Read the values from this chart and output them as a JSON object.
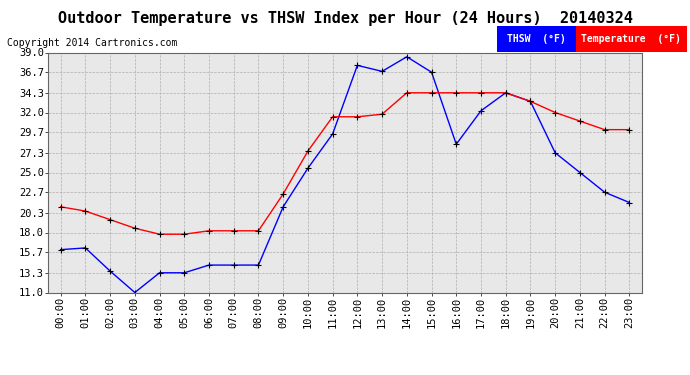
{
  "title": "Outdoor Temperature vs THSW Index per Hour (24 Hours)  20140324",
  "copyright": "Copyright 2014 Cartronics.com",
  "hours": [
    "00:00",
    "01:00",
    "02:00",
    "03:00",
    "04:00",
    "05:00",
    "06:00",
    "07:00",
    "08:00",
    "09:00",
    "10:00",
    "11:00",
    "12:00",
    "13:00",
    "14:00",
    "15:00",
    "16:00",
    "17:00",
    "18:00",
    "19:00",
    "20:00",
    "21:00",
    "22:00",
    "23:00"
  ],
  "thsw": [
    16.0,
    16.2,
    13.5,
    11.0,
    13.3,
    13.3,
    14.2,
    14.2,
    14.2,
    21.0,
    25.5,
    29.5,
    37.5,
    36.8,
    38.5,
    36.7,
    28.3,
    32.2,
    34.3,
    33.3,
    27.3,
    25.0,
    22.7,
    21.5
  ],
  "temperature": [
    21.0,
    20.5,
    19.5,
    18.5,
    17.8,
    17.8,
    18.2,
    18.2,
    18.2,
    22.5,
    27.5,
    31.5,
    31.5,
    31.8,
    34.3,
    34.3,
    34.3,
    34.3,
    34.3,
    33.3,
    32.0,
    31.0,
    30.0,
    30.0
  ],
  "ylim": [
    11.0,
    39.0
  ],
  "yticks": [
    11.0,
    13.3,
    15.7,
    18.0,
    20.3,
    22.7,
    25.0,
    27.3,
    29.7,
    32.0,
    34.3,
    36.7,
    39.0
  ],
  "thsw_color": "#0000FF",
  "temp_color": "#FF0000",
  "bg_color": "#FFFFFF",
  "plot_bg_color": "#E8E8E8",
  "grid_color": "#AAAAAA",
  "thsw_label": "THSW  (°F)",
  "temp_label": "Temperature  (°F)",
  "legend_thsw_bg": "#0000FF",
  "legend_temp_bg": "#FF0000",
  "title_fontsize": 11,
  "copyright_fontsize": 7,
  "axis_fontsize": 7.5
}
